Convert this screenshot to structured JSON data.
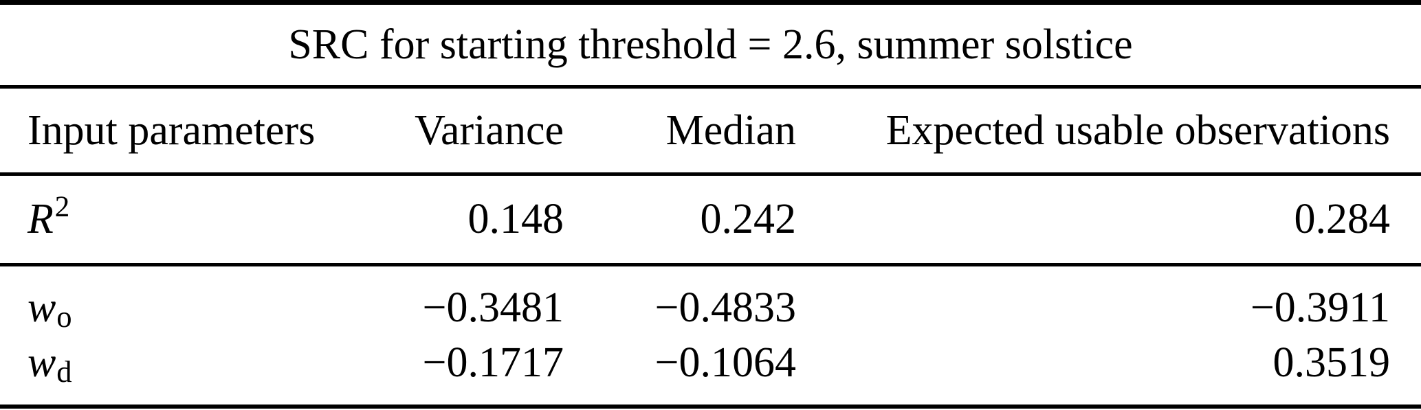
{
  "colors": {
    "background": "#ffffff",
    "text": "#000000",
    "rule": "#000000"
  },
  "table": {
    "title": "SRC for starting threshold = 2.6, summer solstice",
    "columns": [
      "Input parameters",
      "Variance",
      "Median",
      "Expected usable observations"
    ],
    "rows": [
      {
        "label": {
          "base": "R",
          "sup": "2"
        },
        "values": [
          "0.148",
          "0.242",
          "0.284"
        ]
      },
      {
        "label": {
          "base": "w",
          "sub": "o"
        },
        "values": [
          "−0.3481",
          "−0.4833",
          "−0.3911"
        ]
      },
      {
        "label": {
          "base": "w",
          "sub": "d"
        },
        "values": [
          "−0.1717",
          "−0.1064",
          "0.3519"
        ]
      }
    ]
  }
}
